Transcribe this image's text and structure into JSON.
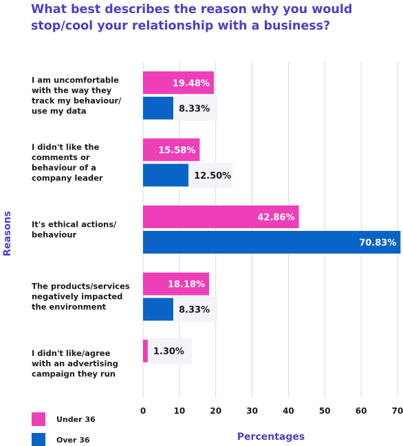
{
  "title_line1": "What best describes the reason why you would",
  "title_line2": "stop/cool your relationship with a business?",
  "chart_data": {
    "type": "bar",
    "orientation": "horizontal",
    "title": "What best describes the reason why you would stop/cool your relationship with a business?",
    "xlabel": "Percentages",
    "ylabel": "Reasons",
    "xlim": [
      0,
      70
    ],
    "xticks": [
      0,
      10,
      20,
      30,
      40,
      50,
      60,
      70
    ],
    "grid": true,
    "legend_position": "bottom-left",
    "categories": [
      [
        "I am uncomfortable",
        "with the way they",
        "track my behaviour/",
        "use my data"
      ],
      [
        "I didn't like the",
        "comments or",
        "behaviour of a",
        "company leader"
      ],
      [
        "It's ethical actions/",
        "behaviour"
      ],
      [
        "The products/services",
        "negatively impacted",
        "the environment"
      ],
      [
        "I didn't  like/agree",
        "with an advertising",
        "campaign they run"
      ]
    ],
    "series": [
      {
        "name": "Under 36",
        "color": "#ee3fb8",
        "values": [
          19.48,
          15.58,
          42.86,
          18.18,
          1.3
        ],
        "labels": [
          "19.48%",
          "15.58%",
          "42.86%",
          "18.18%",
          "1.30%"
        ]
      },
      {
        "name": "Over 36",
        "color": "#0a63c6",
        "values": [
          8.33,
          12.5,
          70.83,
          8.33,
          null
        ],
        "labels": [
          "8.33%",
          "12.50%",
          "70.83%",
          "8.33%",
          ""
        ]
      }
    ]
  }
}
